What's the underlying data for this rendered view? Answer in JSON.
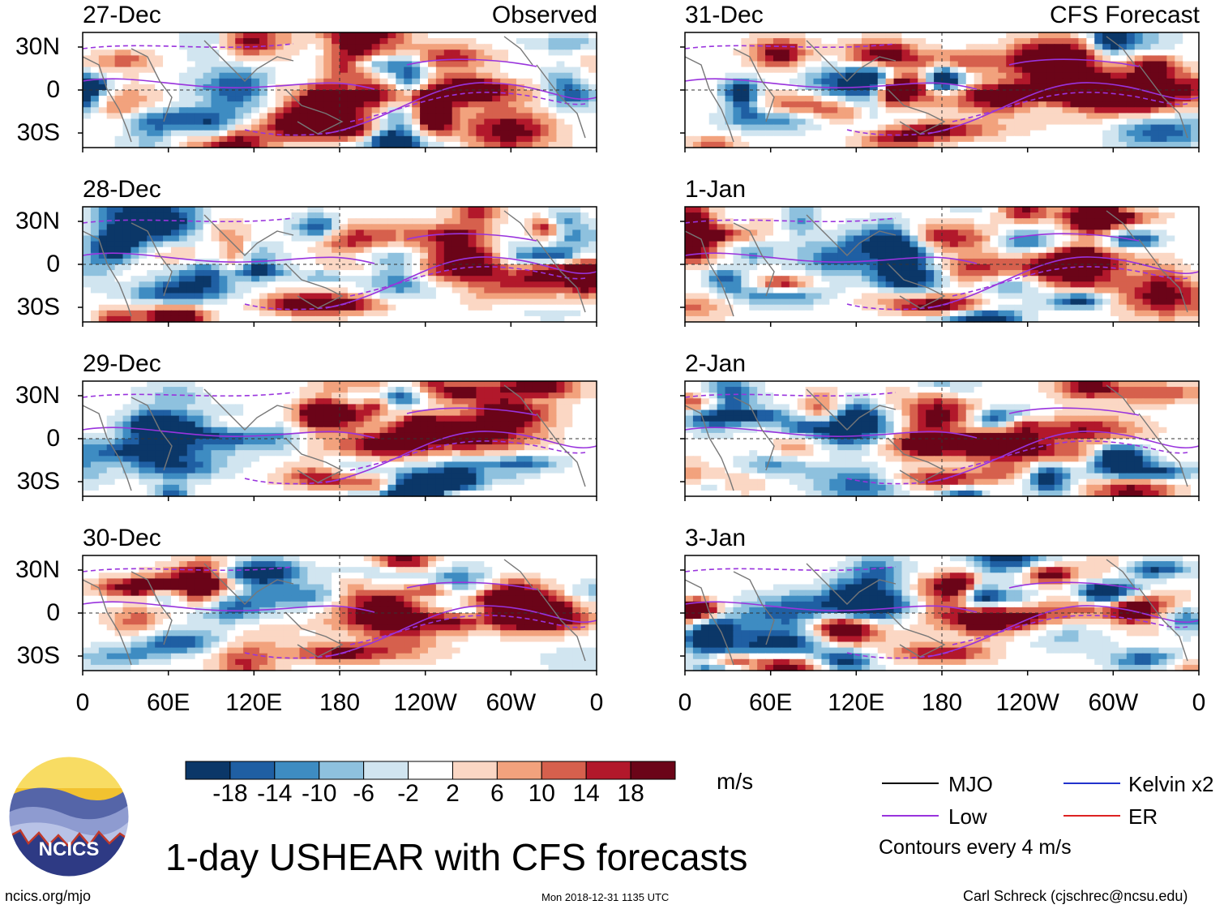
{
  "figure": {
    "title": "1-day USHEAR with CFS forecasts",
    "left_column_label": "Observed",
    "right_column_label": "CFS Forecast",
    "units": "m/s",
    "contour_note": "Contours every 4 m/s",
    "source_url": "ncics.org/mjo",
    "timestamp": "Mon 2018-12-31 1135 UTC",
    "author": "Carl Schreck (cjschrec@ncsu.edu)",
    "logo_text": "NCICS"
  },
  "panels_left": [
    {
      "date": "27-Dec"
    },
    {
      "date": "28-Dec"
    },
    {
      "date": "29-Dec"
    },
    {
      "date": "30-Dec"
    }
  ],
  "panels_right": [
    {
      "date": "31-Dec"
    },
    {
      "date": "1-Jan"
    },
    {
      "date": "2-Jan"
    },
    {
      "date": "3-Jan"
    }
  ],
  "axes": {
    "lat_labels": [
      "30N",
      "0",
      "30S"
    ],
    "lon_labels": [
      "0",
      "60E",
      "120E",
      "180",
      "120W",
      "60W",
      "0"
    ]
  },
  "colorbar": {
    "ticks": [
      "-18",
      "-14",
      "-10",
      "-6",
      "-2",
      "2",
      "6",
      "10",
      "14",
      "18"
    ],
    "colors": [
      "#0b3768",
      "#1f5fa3",
      "#3e8cc2",
      "#8ec1de",
      "#d1e5f0",
      "#ffffff",
      "#fbd7c4",
      "#f2a27d",
      "#d6604d",
      "#b2182b",
      "#6b0418"
    ]
  },
  "legend": [
    {
      "label": "MJO",
      "color": "#000000"
    },
    {
      "label": "Kelvin x2",
      "color": "#2233cc"
    },
    {
      "label": "Low",
      "color": "#9933dd"
    },
    {
      "label": "ER",
      "color": "#dd2222"
    }
  ]
}
